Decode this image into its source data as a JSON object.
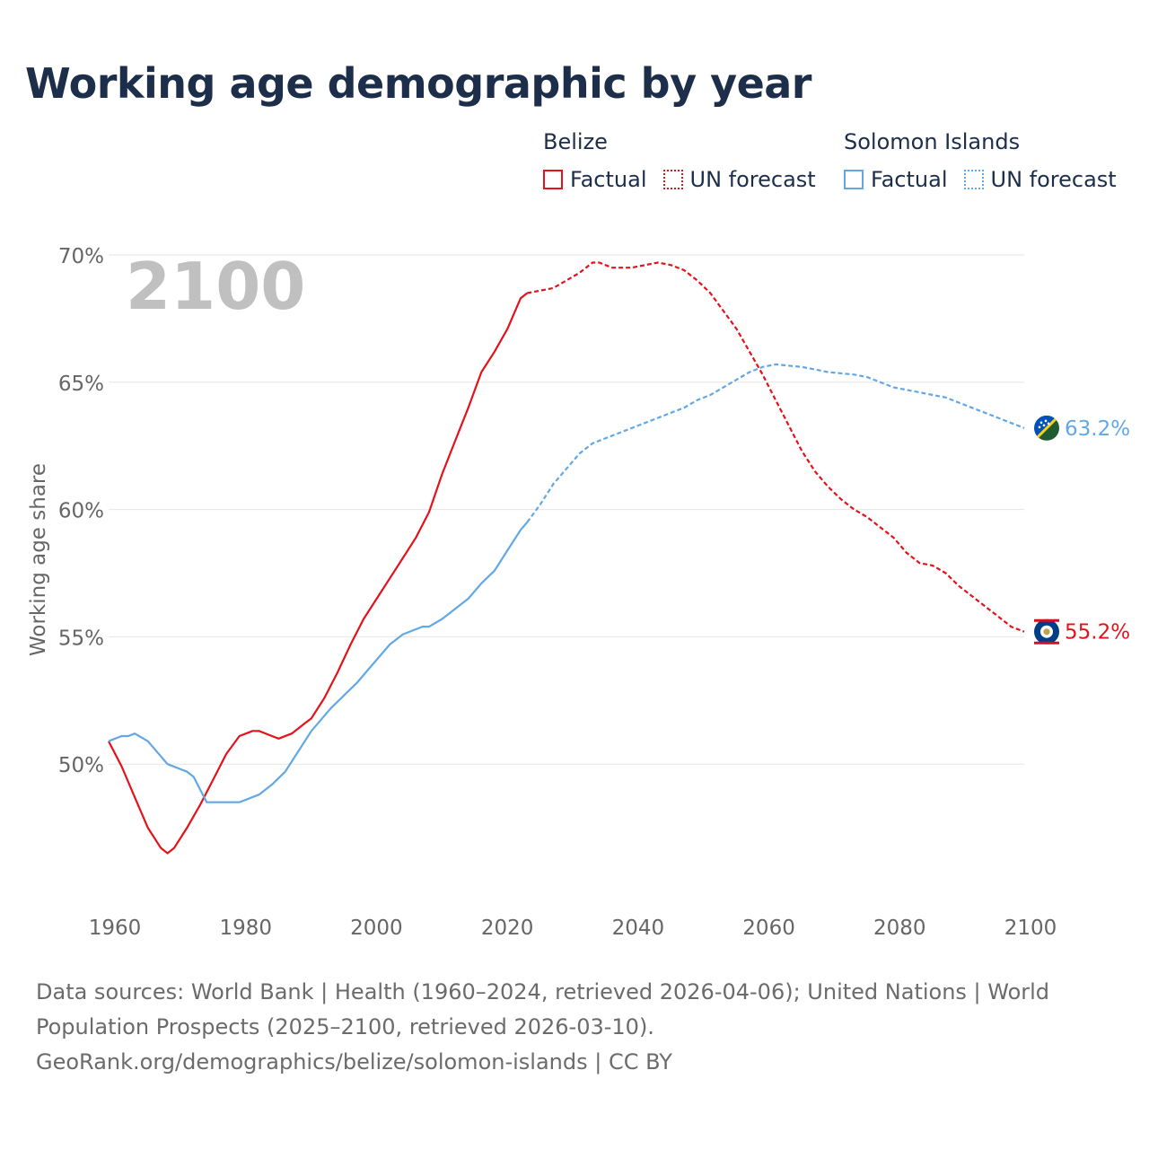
{
  "title": "Working age demographic by year",
  "legend": {
    "groups": [
      {
        "country": "Belize",
        "factual": "Factual",
        "forecast": "UN forecast"
      },
      {
        "country": "Solomon Islands",
        "factual": "Factual",
        "forecast": "UN forecast"
      }
    ]
  },
  "colors": {
    "belize": "#e3121b",
    "solomon": "#62a8e5",
    "grid": "#e6e6e6",
    "axis_text": "#666666",
    "year_watermark": "#c0c0c0"
  },
  "chart_data": {
    "type": "line",
    "title": "Working age demographic by year",
    "ylabel": "Working age share",
    "xlabel": "",
    "year_watermark": "2100",
    "xlim": [
      1960,
      2100
    ],
    "ylim": [
      45,
      70
    ],
    "x_ticks": [
      "1960",
      "1980",
      "2000",
      "2020",
      "2040",
      "2060",
      "2080",
      "2100"
    ],
    "y_ticks": [
      {
        "value": 50,
        "label": "50%"
      },
      {
        "value": 55,
        "label": "55%"
      },
      {
        "value": 60,
        "label": "60%"
      },
      {
        "value": 65,
        "label": "65%"
      },
      {
        "value": 70,
        "label": "70%"
      }
    ],
    "forecast_start": 2024,
    "series": [
      {
        "name": "Belize",
        "end_label": "55.2%",
        "flag": "belize-flag",
        "points": [
          [
            1960,
            50.9
          ],
          [
            1962,
            49.9
          ],
          [
            1964,
            48.7
          ],
          [
            1966,
            47.5
          ],
          [
            1968,
            46.7
          ],
          [
            1969,
            46.5
          ],
          [
            1970,
            46.7
          ],
          [
            1972,
            47.5
          ],
          [
            1974,
            48.4
          ],
          [
            1976,
            49.4
          ],
          [
            1978,
            50.4
          ],
          [
            1980,
            51.1
          ],
          [
            1982,
            51.3
          ],
          [
            1983,
            51.3
          ],
          [
            1985,
            51.1
          ],
          [
            1986,
            51.0
          ],
          [
            1988,
            51.2
          ],
          [
            1990,
            51.6
          ],
          [
            1991,
            51.8
          ],
          [
            1993,
            52.6
          ],
          [
            1995,
            53.6
          ],
          [
            1997,
            54.7
          ],
          [
            1999,
            55.7
          ],
          [
            2001,
            56.5
          ],
          [
            2003,
            57.3
          ],
          [
            2005,
            58.1
          ],
          [
            2007,
            58.9
          ],
          [
            2008,
            59.4
          ],
          [
            2009,
            59.9
          ],
          [
            2011,
            61.4
          ],
          [
            2013,
            62.7
          ],
          [
            2015,
            64.0
          ],
          [
            2016,
            64.7
          ],
          [
            2017,
            65.4
          ],
          [
            2019,
            66.2
          ],
          [
            2021,
            67.1
          ],
          [
            2022,
            67.7
          ],
          [
            2023,
            68.3
          ],
          [
            2024,
            68.5
          ],
          [
            2026,
            68.6
          ],
          [
            2028,
            68.7
          ],
          [
            2030,
            69.0
          ],
          [
            2032,
            69.3
          ],
          [
            2034,
            69.7
          ],
          [
            2035,
            69.7
          ],
          [
            2037,
            69.5
          ],
          [
            2040,
            69.5
          ],
          [
            2042,
            69.6
          ],
          [
            2044,
            69.7
          ],
          [
            2046,
            69.6
          ],
          [
            2048,
            69.4
          ],
          [
            2050,
            69.0
          ],
          [
            2052,
            68.5
          ],
          [
            2054,
            67.8
          ],
          [
            2056,
            67.1
          ],
          [
            2058,
            66.2
          ],
          [
            2060,
            65.3
          ],
          [
            2062,
            64.3
          ],
          [
            2064,
            63.3
          ],
          [
            2066,
            62.3
          ],
          [
            2068,
            61.5
          ],
          [
            2070,
            60.9
          ],
          [
            2072,
            60.4
          ],
          [
            2074,
            60.0
          ],
          [
            2076,
            59.7
          ],
          [
            2078,
            59.3
          ],
          [
            2080,
            58.9
          ],
          [
            2082,
            58.3
          ],
          [
            2084,
            57.9
          ],
          [
            2086,
            57.8
          ],
          [
            2088,
            57.5
          ],
          [
            2090,
            57.0
          ],
          [
            2092,
            56.6
          ],
          [
            2094,
            56.2
          ],
          [
            2096,
            55.8
          ],
          [
            2098,
            55.4
          ],
          [
            2100,
            55.2
          ]
        ]
      },
      {
        "name": "Solomon Islands",
        "end_label": "63.2%",
        "flag": "solomon-islands-flag",
        "points": [
          [
            1960,
            50.9
          ],
          [
            1962,
            51.1
          ],
          [
            1963,
            51.1
          ],
          [
            1964,
            51.2
          ],
          [
            1966,
            50.9
          ],
          [
            1967,
            50.6
          ],
          [
            1968,
            50.3
          ],
          [
            1969,
            50.0
          ],
          [
            1971,
            49.8
          ],
          [
            1972,
            49.7
          ],
          [
            1973,
            49.5
          ],
          [
            1974,
            49.0
          ],
          [
            1975,
            48.5
          ],
          [
            1976,
            48.5
          ],
          [
            1980,
            48.5
          ],
          [
            1983,
            48.8
          ],
          [
            1985,
            49.2
          ],
          [
            1987,
            49.7
          ],
          [
            1989,
            50.5
          ],
          [
            1991,
            51.3
          ],
          [
            1994,
            52.2
          ],
          [
            1996,
            52.7
          ],
          [
            1998,
            53.2
          ],
          [
            2000,
            53.8
          ],
          [
            2003,
            54.7
          ],
          [
            2005,
            55.1
          ],
          [
            2008,
            55.4
          ],
          [
            2009,
            55.4
          ],
          [
            2011,
            55.7
          ],
          [
            2013,
            56.1
          ],
          [
            2015,
            56.5
          ],
          [
            2017,
            57.1
          ],
          [
            2019,
            57.6
          ],
          [
            2021,
            58.4
          ],
          [
            2023,
            59.2
          ],
          [
            2024,
            59.5
          ],
          [
            2026,
            60.2
          ],
          [
            2028,
            61.0
          ],
          [
            2030,
            61.6
          ],
          [
            2032,
            62.2
          ],
          [
            2034,
            62.6
          ],
          [
            2036,
            62.8
          ],
          [
            2038,
            63.0
          ],
          [
            2040,
            63.2
          ],
          [
            2042,
            63.4
          ],
          [
            2044,
            63.6
          ],
          [
            2046,
            63.8
          ],
          [
            2048,
            64.0
          ],
          [
            2050,
            64.3
          ],
          [
            2052,
            64.5
          ],
          [
            2054,
            64.8
          ],
          [
            2056,
            65.1
          ],
          [
            2058,
            65.4
          ],
          [
            2060,
            65.6
          ],
          [
            2062,
            65.7
          ],
          [
            2066,
            65.6
          ],
          [
            2068,
            65.5
          ],
          [
            2070,
            65.4
          ],
          [
            2074,
            65.3
          ],
          [
            2076,
            65.2
          ],
          [
            2078,
            65.0
          ],
          [
            2080,
            64.8
          ],
          [
            2082,
            64.7
          ],
          [
            2084,
            64.6
          ],
          [
            2086,
            64.5
          ],
          [
            2088,
            64.4
          ],
          [
            2090,
            64.2
          ],
          [
            2092,
            64.0
          ],
          [
            2094,
            63.8
          ],
          [
            2096,
            63.6
          ],
          [
            2098,
            63.4
          ],
          [
            2100,
            63.2
          ]
        ]
      }
    ]
  },
  "footer": {
    "line1": "Data sources: World Bank | Health (1960–2024, retrieved 2026-04-06); United Nations | World",
    "line2": "Population Prospects (2025–2100, retrieved 2026-03-10).",
    "line3": "GeoRank.org/demographics/belize/solomon-islands | CC BY"
  }
}
